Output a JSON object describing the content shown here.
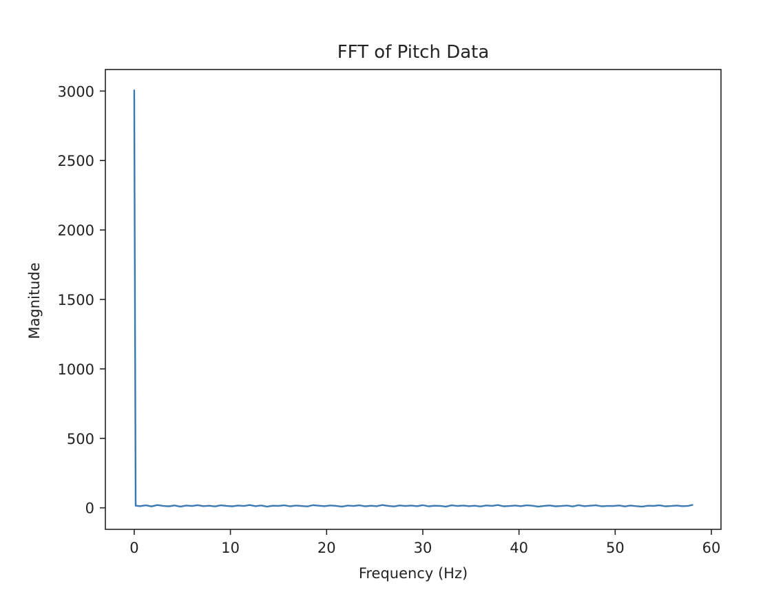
{
  "chart_data": {
    "type": "line",
    "title": "FFT of Pitch Data",
    "xlabel": "Frequency (Hz)",
    "ylabel": "Magnitude",
    "xlim": [
      -3,
      61
    ],
    "ylim": [
      -155,
      3155
    ],
    "xticks": [
      0,
      10,
      20,
      30,
      40,
      50,
      60
    ],
    "yticks": [
      0,
      500,
      1000,
      1500,
      2000,
      2500,
      3000
    ],
    "xtick_labels": [
      "0",
      "10",
      "20",
      "30",
      "40",
      "50",
      "60"
    ],
    "ytick_labels": [
      "0",
      "500",
      "1000",
      "1500",
      "2000",
      "2500",
      "3000"
    ],
    "grid": false,
    "colors": {
      "line": "#3a78b4",
      "frame": "#222222"
    },
    "series": [
      {
        "x": [
          0,
          0.15,
          0.6,
          1.2,
          1.8,
          2.4,
          3.0,
          3.6,
          4.2,
          4.8,
          5.4,
          6.0,
          6.6,
          7.2,
          7.8,
          8.4,
          9.0,
          9.6,
          10.2,
          10.8,
          11.4,
          12.0,
          12.6,
          13.2,
          13.8,
          14.4,
          15.0,
          15.6,
          16.2,
          16.8,
          17.4,
          18.0,
          18.6,
          19.2,
          19.8,
          20.4,
          21.0,
          21.6,
          22.2,
          22.8,
          23.4,
          24.0,
          24.6,
          25.2,
          25.8,
          26.4,
          27.0,
          27.6,
          28.2,
          28.8,
          29.4,
          30.0,
          30.6,
          31.2,
          31.8,
          32.4,
          33.0,
          33.6,
          34.2,
          34.8,
          35.4,
          36.0,
          36.6,
          37.2,
          37.8,
          38.4,
          39.0,
          39.6,
          40.2,
          40.8,
          41.4,
          42.0,
          42.6,
          43.2,
          43.8,
          44.4,
          45.0,
          45.6,
          46.2,
          46.8,
          47.4,
          48.0,
          48.6,
          49.2,
          49.8,
          50.4,
          51.0,
          51.6,
          52.2,
          52.8,
          53.4,
          54.0,
          54.6,
          55.2,
          55.8,
          56.4,
          57.0,
          57.6,
          58.1
        ],
        "y": [
          3010,
          15,
          12,
          18,
          10,
          20,
          14,
          11,
          17,
          9,
          16,
          13,
          19,
          12,
          15,
          10,
          18,
          14,
          11,
          16,
          13,
          20,
          12,
          17,
          9,
          15,
          14,
          18,
          11,
          16,
          13,
          10,
          19,
          15,
          12,
          17,
          14,
          9,
          16,
          13,
          18,
          11,
          15,
          12,
          20,
          14,
          10,
          17,
          13,
          16,
          12,
          19,
          11,
          15,
          14,
          9,
          18,
          13,
          16,
          12,
          15,
          10,
          17,
          14,
          20,
          11,
          13,
          16,
          12,
          18,
          15,
          9,
          14,
          17,
          11,
          13,
          16,
          10,
          19,
          12,
          15,
          18,
          11,
          14,
          13,
          17,
          10,
          16,
          12,
          9,
          15,
          14,
          18,
          11,
          13,
          16,
          12,
          14,
          22
        ]
      }
    ]
  }
}
